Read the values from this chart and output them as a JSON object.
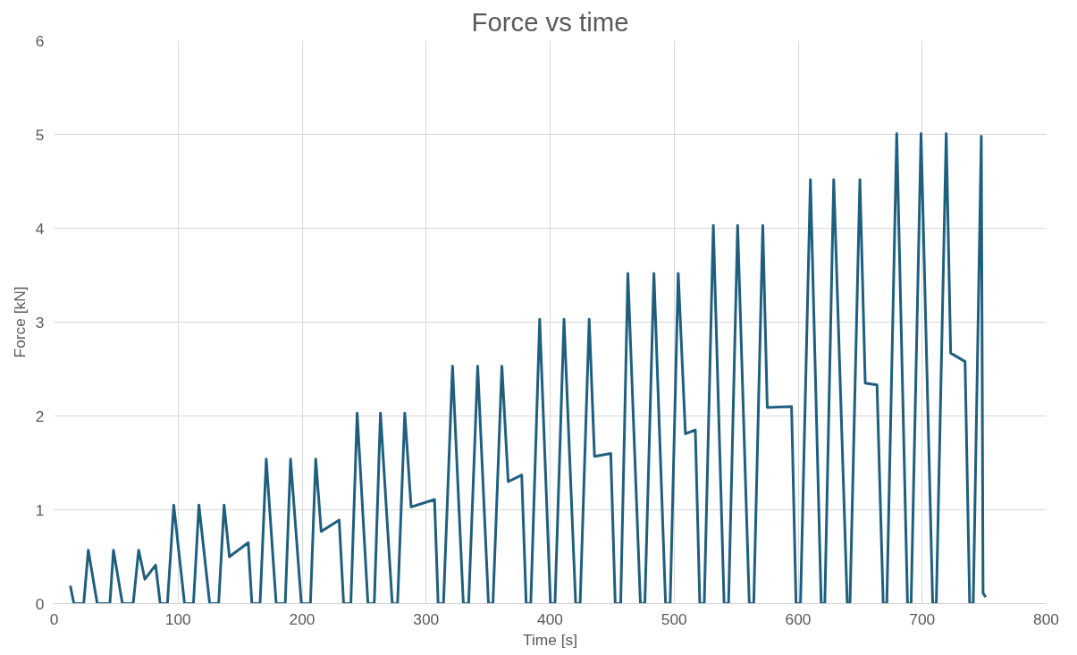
{
  "chart_data": {
    "type": "line",
    "title": "Force vs time",
    "xlabel": "Time [s]",
    "ylabel": "Force [kN]",
    "xlim": [
      0,
      800
    ],
    "xticks": [
      0,
      100,
      200,
      300,
      400,
      500,
      600,
      700,
      800
    ],
    "ylim": [
      0,
      6
    ],
    "yticks": [
      0,
      1,
      2,
      3,
      4,
      5,
      6
    ],
    "grid": true,
    "marker": "none",
    "line_style": "solid",
    "series": [
      {
        "color": "#1f5f7e",
        "x": [
          13.1,
          16.0,
          23.9,
          27.6,
          34.8,
          45.0,
          47.9,
          55.1,
          63.8,
          68.2,
          73.2,
          81.9,
          85.6,
          91.4,
          96.5,
          105.2,
          112.4,
          116.8,
          125.5,
          132.7,
          137.1,
          141.4,
          156.6,
          159.5,
          166.1,
          171.1,
          179.1,
          186.4,
          190.7,
          199.4,
          206.7,
          211.0,
          215.4,
          229.9,
          233.5,
          239.3,
          244.4,
          253.1,
          258.2,
          263.2,
          272.7,
          277.0,
          282.8,
          287.9,
          306.8,
          309.7,
          314.0,
          321.3,
          330.0,
          334.3,
          341.6,
          350.3,
          353.9,
          361.1,
          366.2,
          377.1,
          380.7,
          384.4,
          391.6,
          400.3,
          403.9,
          411.2,
          420.6,
          424.2,
          431.5,
          435.8,
          448.9,
          452.5,
          456.9,
          462.7,
          472.8,
          476.4,
          483.7,
          493.1,
          496.8,
          503.3,
          509.1,
          517.1,
          520.7,
          524.3,
          531.6,
          540.3,
          543.9,
          551.2,
          560.6,
          564.2,
          571.5,
          575.1,
          594.7,
          598.3,
          601.9,
          609.9,
          618.6,
          621.5,
          628.7,
          639.6,
          641.8,
          649.8,
          654.1,
          663.6,
          668.6,
          671.5,
          679.5,
          688.2,
          691.1,
          699.1,
          708.5,
          711.4,
          719.4,
          723.0,
          734.6,
          738.3,
          741.2,
          747.7,
          749.1,
          751.3
        ],
        "values": [
          0.19,
          0,
          0,
          0.57,
          0,
          0,
          0.57,
          0,
          0,
          0.57,
          0.26,
          0.41,
          0,
          0,
          1.05,
          0,
          0,
          1.05,
          0,
          0,
          1.05,
          0.5,
          0.65,
          0,
          0,
          1.54,
          0,
          0,
          1.54,
          0,
          0,
          1.54,
          0.77,
          0.89,
          0,
          0,
          2.03,
          0,
          0,
          2.03,
          0,
          0,
          2.03,
          1.03,
          1.11,
          0,
          0,
          2.53,
          0,
          0,
          2.53,
          0,
          0,
          2.53,
          1.3,
          1.37,
          0,
          0,
          3.03,
          0,
          0,
          3.03,
          0,
          0,
          3.03,
          1.57,
          1.6,
          0,
          0,
          3.52,
          0,
          0,
          3.52,
          0,
          0,
          3.52,
          1.81,
          1.85,
          0,
          0,
          4.03,
          0,
          0,
          4.03,
          0,
          0,
          4.03,
          2.09,
          2.1,
          0,
          0,
          4.52,
          0,
          0,
          4.52,
          0,
          0,
          4.52,
          2.35,
          2.33,
          0,
          0,
          5.01,
          0,
          0,
          5.01,
          0,
          0,
          5.01,
          2.67,
          2.58,
          0,
          0,
          4.98,
          0.11,
          0.07
        ]
      }
    ]
  }
}
